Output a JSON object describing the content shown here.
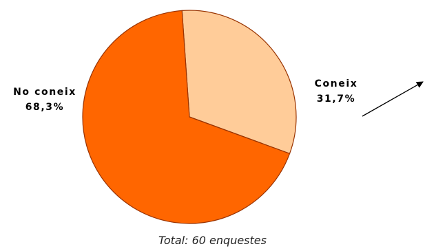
{
  "chart_data": {
    "type": "pie",
    "slices": [
      {
        "label": "Coneix",
        "value": 31.7,
        "value_label": "31,7%",
        "color": "#FFCC99"
      },
      {
        "label": "No coneix",
        "value": 68.3,
        "value_label": "68,3%",
        "color": "#FF6600"
      }
    ],
    "caption": "Total: 60 enquestes",
    "outline_color": "#993300"
  }
}
